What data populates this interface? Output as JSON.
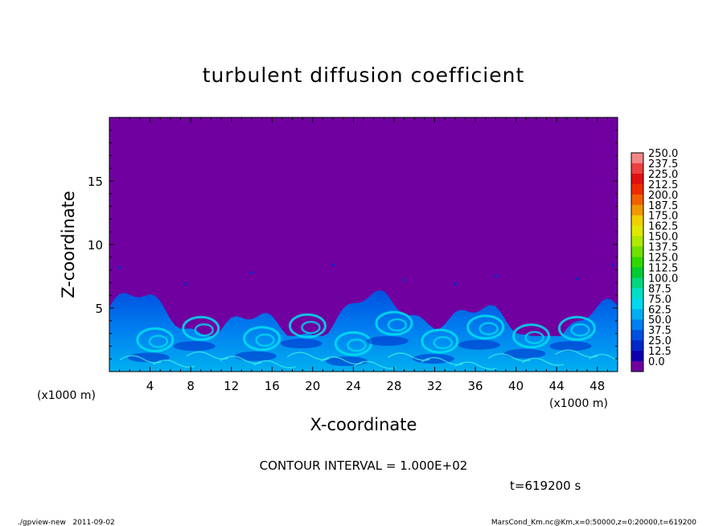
{
  "chart_data": {
    "type": "heatmap",
    "title": "turbulent diffusion coefficient",
    "xlabel": "X-coordinate",
    "ylabel": "Z-coordinate",
    "x_unit": "(x1000 m)",
    "y_unit": "(x1000 m)",
    "xlim": [
      0,
      50
    ],
    "ylim": [
      0,
      20
    ],
    "x_ticks": [
      4,
      8,
      12,
      16,
      20,
      24,
      28,
      32,
      36,
      40,
      44,
      48
    ],
    "y_ticks": [
      5,
      10,
      15
    ],
    "contour_interval_text": "CONTOUR INTERVAL = 1.000E+02",
    "time_text": "t=619200 s",
    "colorbar": {
      "labels": [
        "250.0",
        "237.5",
        "225.0",
        "212.5",
        "200.0",
        "187.5",
        "175.0",
        "162.5",
        "150.0",
        "137.5",
        "125.0",
        "112.5",
        "100.0",
        "87.5",
        "75.0",
        "62.5",
        "50.0",
        "37.5",
        "25.0",
        "12.5",
        "0.0"
      ],
      "colors": [
        "#f08888",
        "#ee4040",
        "#e01010",
        "#ee2a00",
        "#f06000",
        "#f09800",
        "#f0d000",
        "#e0e800",
        "#b0e800",
        "#70e000",
        "#30d800",
        "#00cc30",
        "#00d880",
        "#00e0c8",
        "#00d8f0",
        "#00b0f0",
        "#0080f0",
        "#0050e0",
        "#0028c8",
        "#1000b0",
        "#7000a0"
      ]
    },
    "background_value_color": "#7000a0",
    "low_level_description": [
      {
        "x_start": 0,
        "x_end": 50,
        "z_top_range": [
          2.5,
          6.5
        ],
        "value_range": [
          12.5,
          87.5
        ]
      }
    ]
  },
  "footer": {
    "left": "./gpview-new   2011-09-02",
    "right": "MarsCond_Km.nc@Km,x=0:50000,z=0:20000,t=619200"
  }
}
